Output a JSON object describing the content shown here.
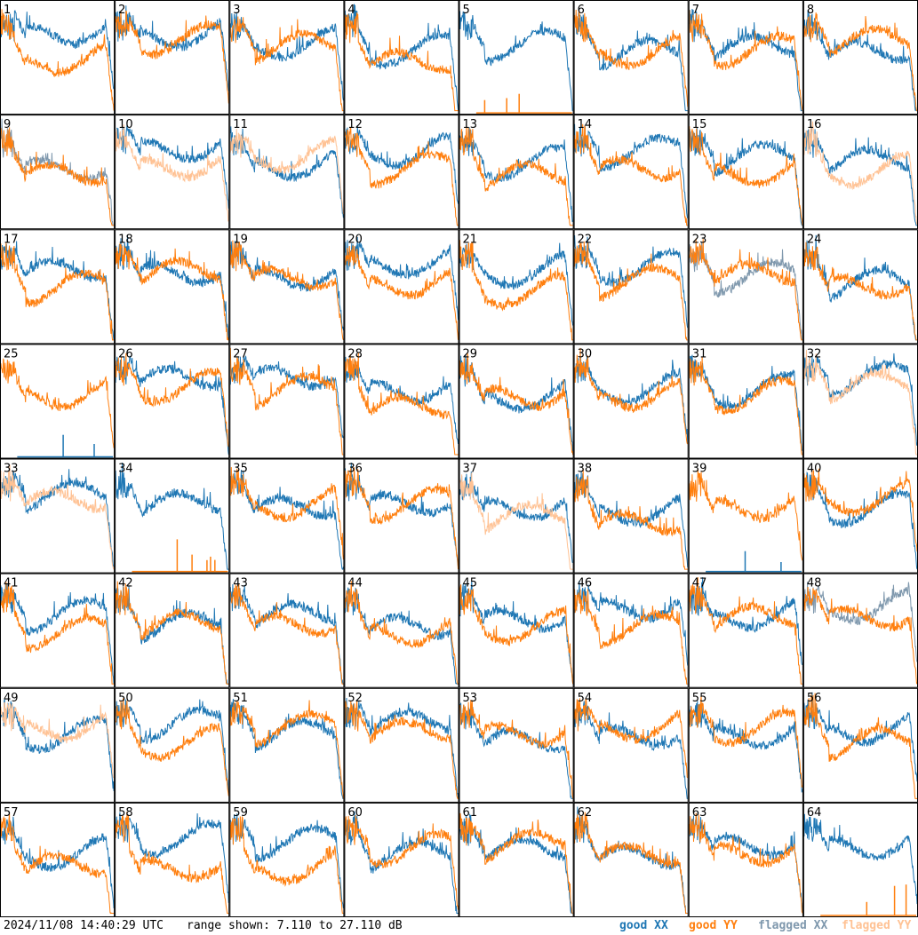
{
  "chart_data": {
    "type": "line",
    "layout": "8x8 small multiples, one panel per antenna input",
    "panels": [
      "1",
      "2",
      "3",
      "4",
      "5",
      "6",
      "7",
      "8",
      "9",
      "10",
      "11",
      "12",
      "13",
      "14",
      "15",
      "16",
      "17",
      "18",
      "19",
      "20",
      "21",
      "22",
      "23",
      "24",
      "25",
      "26",
      "27",
      "28",
      "29",
      "30",
      "31",
      "32",
      "33",
      "34",
      "35",
      "36",
      "37",
      "38",
      "39",
      "40",
      "41",
      "42",
      "43",
      "44",
      "45",
      "46",
      "47",
      "48",
      "49",
      "50",
      "51",
      "52",
      "53",
      "54",
      "55",
      "56",
      "57",
      "58",
      "59",
      "60",
      "61",
      "62",
      "63",
      "64"
    ],
    "series": [
      {
        "name": "good XX",
        "color": "#1f77b4"
      },
      {
        "name": "good YY",
        "color": "#ff7f0e"
      },
      {
        "name": "flagged XX",
        "color": "#7f98ad"
      },
      {
        "name": "flagged YY",
        "color": "#ffc294"
      }
    ],
    "flagged": {
      "xx": [
        "9",
        "23",
        "48"
      ],
      "yy": [
        "10",
        "11",
        "16",
        "32",
        "33",
        "37",
        "49"
      ],
      "spikes_only_yy": [
        "5",
        "34",
        "64"
      ],
      "spikes_only_xx": [
        "25",
        "39"
      ]
    },
    "ylim_db": [
      7.11,
      27.11
    ],
    "grid": false,
    "legend_position": "bottom-right"
  },
  "footer": {
    "timestamp": "2024/11/08 14:40:29 UTC",
    "range": "range shown: 7.110 to 27.110 dB"
  },
  "legend": {
    "good_xx": "good XX",
    "good_yy": "good YY",
    "flagged_xx": "flagged XX",
    "flagged_yy": "flagged YY"
  },
  "colors": {
    "good_xx": "#1f77b4",
    "good_yy": "#ff7f0e",
    "flagged_xx": "#7f98ad",
    "flagged_yy": "#ffc294"
  }
}
